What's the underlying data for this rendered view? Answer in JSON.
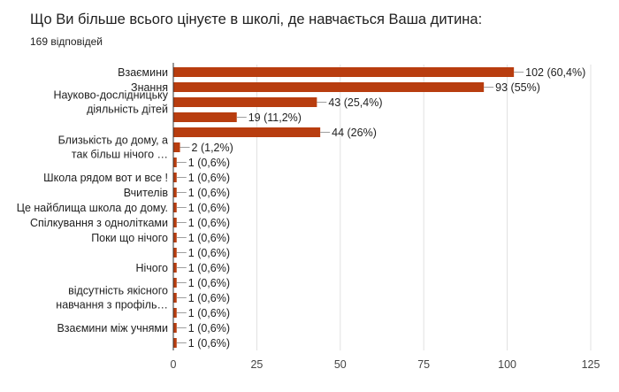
{
  "title": "Що Ви більше всього цінуєте в школі, де навчається Ваша дитина:",
  "subtitle": "169 відповідей",
  "colors": {
    "bar": "#b83d0f",
    "grid": "#e0e0e0",
    "axis": "#333333",
    "leader": "#9e9e9e"
  },
  "chart_data": {
    "type": "bar",
    "orientation": "horizontal",
    "xlim": [
      0,
      125
    ],
    "xticks": [
      "0",
      "25",
      "50",
      "75",
      "100",
      "125"
    ],
    "grid": true,
    "bars": [
      {
        "category": "Взаємини",
        "value": 102,
        "label": "102 (60,4%)"
      },
      {
        "category": "Знання",
        "value": 93,
        "label": "93 (55%)"
      },
      {
        "category": "Науково-дослідницьку діяльність дітей",
        "value": 43,
        "label": "43 (25,4%)"
      },
      {
        "category": "",
        "value": 19,
        "label": "19 (11,2%)"
      },
      {
        "category": "",
        "value": 44,
        "label": "44 (26%)"
      },
      {
        "category": "Близькість до дому, а так більш нічого …",
        "value": 2,
        "label": "2 (1,2%)"
      },
      {
        "category": "",
        "value": 1,
        "label": "1 (0,6%)"
      },
      {
        "category": "Школа рядом вот и все !",
        "value": 1,
        "label": "1 (0,6%)"
      },
      {
        "category": "Вчителів",
        "value": 1,
        "label": "1 (0,6%)"
      },
      {
        "category": "Це найблища школа до дому.",
        "value": 1,
        "label": "1 (0,6%)"
      },
      {
        "category": "Спілкування з однолітками",
        "value": 1,
        "label": "1 (0,6%)"
      },
      {
        "category": "Поки що нічого",
        "value": 1,
        "label": "1 (0,6%)"
      },
      {
        "category": "",
        "value": 1,
        "label": "1 (0,6%)"
      },
      {
        "category": "Нічого",
        "value": 1,
        "label": "1 (0,6%)"
      },
      {
        "category": "",
        "value": 1,
        "label": "1 (0,6%)"
      },
      {
        "category": "відсутність якісного навчання з профіль…",
        "value": 1,
        "label": "1 (0,6%)"
      },
      {
        "category": "",
        "value": 1,
        "label": "1 (0,6%)"
      },
      {
        "category": "Взаємини між учнями",
        "value": 1,
        "label": "1 (0,6%)"
      },
      {
        "category": "",
        "value": 1,
        "label": "1 (0,6%)"
      }
    ]
  }
}
